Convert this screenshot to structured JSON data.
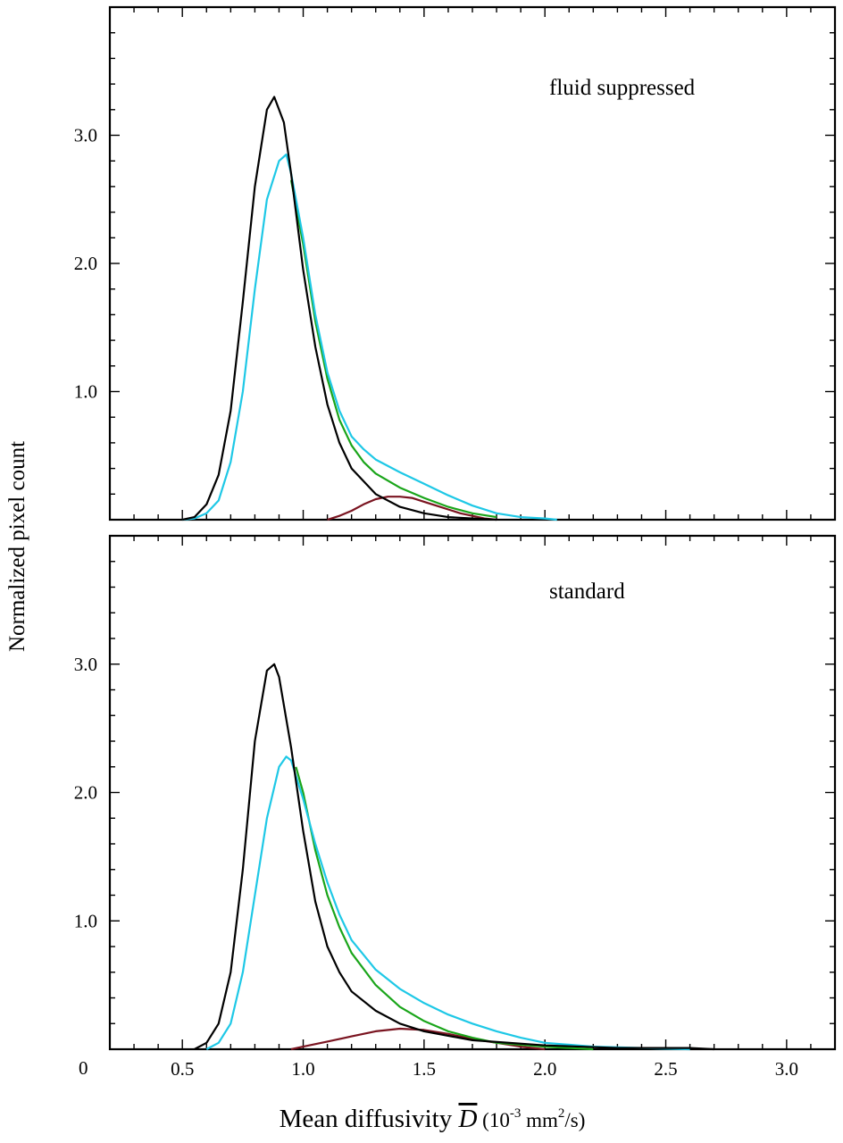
{
  "figure": {
    "ylabel": "Normalized pixel count",
    "xlabel": {
      "prefix": "Mean diffusivity ",
      "symbol": "D",
      "unit_open": " (10",
      "unit_exp": "-3",
      "unit_mid": " mm",
      "unit_exp2": "2",
      "unit_close": "/s)"
    },
    "zero_label": "0",
    "x_tick_labels": [
      "0.5",
      "1.0",
      "1.5",
      "2.0",
      "2.5",
      "3.0"
    ],
    "y_tick_labels": [
      "1.0",
      "2.0",
      "3.0"
    ]
  },
  "colors": {
    "black": "#000000",
    "cyan": "#1ec8e6",
    "green": "#1aa51a",
    "darkred": "#7a1420"
  },
  "chart_data": [
    {
      "type": "line",
      "panel_label": "fluid suppressed",
      "xlabel": "Mean diffusivity D (10-3 mm2/s)",
      "ylabel": "Normalized pixel count",
      "xlim": [
        0.2,
        3.2
      ],
      "ylim": [
        0,
        4.0
      ],
      "x_ticks": [
        0.5,
        1.0,
        1.5,
        2.0,
        2.5,
        3.0
      ],
      "y_ticks": [
        1.0,
        2.0,
        3.0
      ],
      "grid": false,
      "series": [
        {
          "color": "black",
          "x": [
            0.5,
            0.55,
            0.6,
            0.65,
            0.7,
            0.75,
            0.8,
            0.85,
            0.88,
            0.92,
            0.95,
            1.0,
            1.05,
            1.1,
            1.15,
            1.2,
            1.3,
            1.4,
            1.5,
            1.6,
            1.7,
            1.8
          ],
          "y": [
            0.0,
            0.02,
            0.12,
            0.35,
            0.85,
            1.7,
            2.6,
            3.2,
            3.3,
            3.1,
            2.7,
            1.95,
            1.35,
            0.9,
            0.6,
            0.4,
            0.2,
            0.1,
            0.05,
            0.02,
            0.01,
            0.0
          ]
        },
        {
          "color": "cyan",
          "x": [
            0.5,
            0.55,
            0.6,
            0.65,
            0.7,
            0.75,
            0.8,
            0.85,
            0.9,
            0.93,
            0.95,
            1.0,
            1.05,
            1.1,
            1.15,
            1.2,
            1.25,
            1.3,
            1.4,
            1.5,
            1.6,
            1.7,
            1.8,
            1.9,
            2.0,
            2.05
          ],
          "y": [
            0.0,
            0.01,
            0.05,
            0.15,
            0.45,
            1.0,
            1.8,
            2.5,
            2.8,
            2.85,
            2.7,
            2.2,
            1.6,
            1.15,
            0.85,
            0.65,
            0.55,
            0.47,
            0.37,
            0.28,
            0.19,
            0.11,
            0.05,
            0.02,
            0.01,
            0.0
          ]
        },
        {
          "color": "green",
          "x": [
            0.95,
            1.0,
            1.05,
            1.1,
            1.15,
            1.2,
            1.25,
            1.3,
            1.4,
            1.5,
            1.6,
            1.7,
            1.8
          ],
          "y": [
            2.65,
            2.15,
            1.55,
            1.1,
            0.78,
            0.58,
            0.45,
            0.36,
            0.25,
            0.17,
            0.1,
            0.05,
            0.02
          ]
        },
        {
          "color": "darkred",
          "x": [
            1.1,
            1.15,
            1.2,
            1.25,
            1.3,
            1.35,
            1.4,
            1.45,
            1.5,
            1.55,
            1.6,
            1.65,
            1.7,
            1.75,
            1.8
          ],
          "y": [
            0.0,
            0.03,
            0.07,
            0.12,
            0.16,
            0.18,
            0.18,
            0.17,
            0.14,
            0.11,
            0.08,
            0.05,
            0.03,
            0.01,
            0.0
          ]
        }
      ]
    },
    {
      "type": "line",
      "panel_label": "standard",
      "xlabel": "Mean diffusivity D (10-3 mm2/s)",
      "ylabel": "Normalized pixel count",
      "xlim": [
        0.2,
        3.2
      ],
      "ylim": [
        0,
        4.0
      ],
      "x_ticks": [
        0.5,
        1.0,
        1.5,
        2.0,
        2.5,
        3.0
      ],
      "y_ticks": [
        1.0,
        2.0,
        3.0
      ],
      "grid": false,
      "series": [
        {
          "color": "black",
          "x": [
            0.55,
            0.6,
            0.65,
            0.7,
            0.75,
            0.8,
            0.85,
            0.88,
            0.9,
            0.95,
            1.0,
            1.05,
            1.1,
            1.15,
            1.2,
            1.3,
            1.4,
            1.5,
            1.7,
            2.0,
            2.3,
            2.6,
            2.7
          ],
          "y": [
            0.0,
            0.05,
            0.2,
            0.6,
            1.4,
            2.4,
            2.95,
            3.0,
            2.9,
            2.35,
            1.7,
            1.15,
            0.8,
            0.6,
            0.45,
            0.3,
            0.2,
            0.14,
            0.07,
            0.03,
            0.01,
            0.01,
            0.0
          ]
        },
        {
          "color": "cyan",
          "x": [
            0.6,
            0.65,
            0.7,
            0.75,
            0.8,
            0.85,
            0.9,
            0.93,
            0.95,
            1.0,
            1.05,
            1.1,
            1.15,
            1.2,
            1.3,
            1.4,
            1.5,
            1.6,
            1.7,
            1.8,
            1.9,
            2.0,
            2.2,
            2.4,
            2.6
          ],
          "y": [
            0.0,
            0.05,
            0.2,
            0.6,
            1.2,
            1.8,
            2.2,
            2.28,
            2.25,
            1.95,
            1.6,
            1.3,
            1.05,
            0.85,
            0.62,
            0.47,
            0.36,
            0.27,
            0.2,
            0.14,
            0.09,
            0.05,
            0.02,
            0.01,
            0.0
          ]
        },
        {
          "color": "green",
          "x": [
            0.97,
            1.0,
            1.05,
            1.1,
            1.15,
            1.2,
            1.3,
            1.4,
            1.5,
            1.6,
            1.7,
            1.8,
            2.0,
            2.2
          ],
          "y": [
            2.2,
            2.0,
            1.55,
            1.2,
            0.95,
            0.75,
            0.5,
            0.33,
            0.22,
            0.14,
            0.09,
            0.05,
            0.02,
            0.0
          ]
        },
        {
          "color": "darkred",
          "x": [
            0.95,
            1.0,
            1.1,
            1.2,
            1.3,
            1.4,
            1.5,
            1.6,
            1.7,
            1.8,
            1.9,
            2.0
          ],
          "y": [
            0.0,
            0.02,
            0.06,
            0.1,
            0.14,
            0.16,
            0.15,
            0.12,
            0.08,
            0.05,
            0.02,
            0.0
          ]
        }
      ]
    }
  ]
}
